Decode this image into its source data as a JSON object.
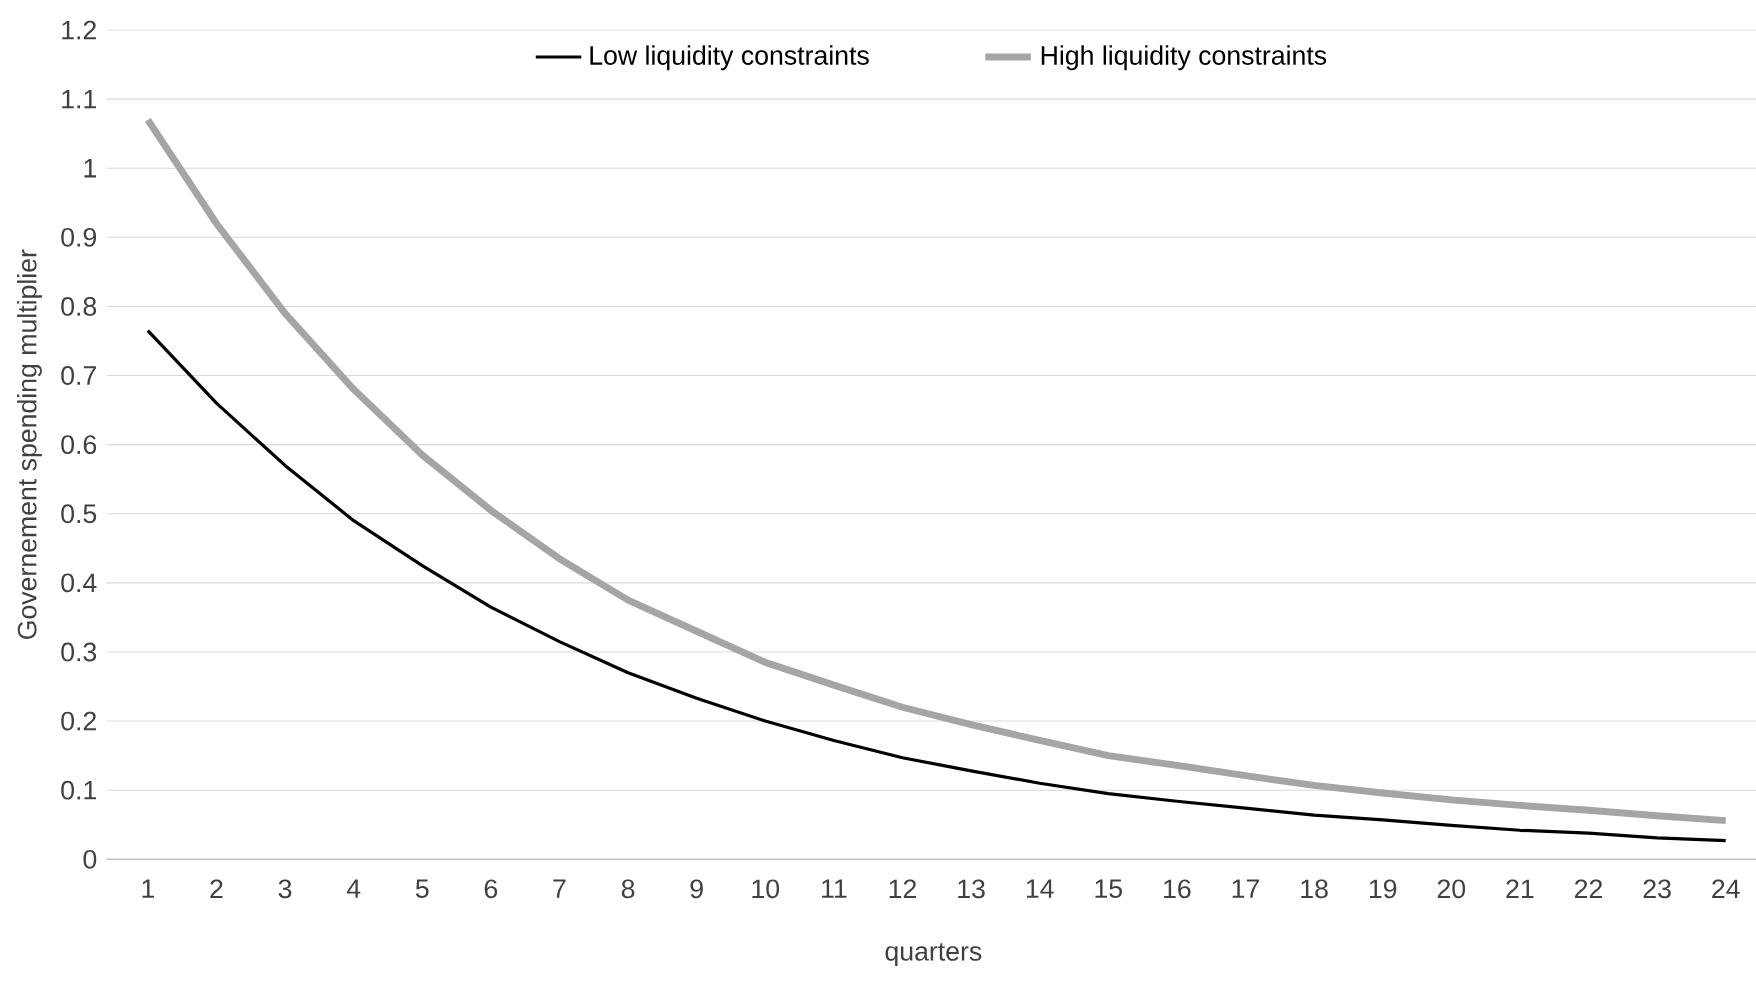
{
  "chart_data": {
    "type": "line",
    "xlabel": "quarters",
    "ylabel": "Governement spending multiplier",
    "categories": [
      "1",
      "2",
      "3",
      "4",
      "5",
      "6",
      "7",
      "8",
      "9",
      "10",
      "11",
      "12",
      "13",
      "14",
      "15",
      "16",
      "17",
      "18",
      "19",
      "20",
      "21",
      "22",
      "23",
      "24"
    ],
    "series": [
      {
        "name": "Low liquidity constraints",
        "color": "#000000",
        "values": [
          0.765,
          0.66,
          0.57,
          0.49,
          0.425,
          0.365,
          0.315,
          0.27,
          0.233,
          0.2,
          0.172,
          0.147,
          0.128,
          0.11,
          0.095,
          0.084,
          0.074,
          0.064,
          0.057,
          0.049,
          0.042,
          0.038,
          0.031,
          0.027
        ]
      },
      {
        "name": "High liquidity constraints",
        "color": "#a5a5a5",
        "values": [
          1.07,
          0.92,
          0.79,
          0.68,
          0.585,
          0.505,
          0.435,
          0.375,
          0.33,
          0.285,
          0.252,
          0.22,
          0.195,
          0.172,
          0.15,
          0.136,
          0.121,
          0.107,
          0.096,
          0.086,
          0.078,
          0.071,
          0.063,
          0.056
        ]
      }
    ],
    "ylim": [
      0,
      1.2
    ],
    "yticks": [
      0,
      0.1,
      0.2,
      0.3,
      0.4,
      0.5,
      0.6,
      0.7,
      0.8,
      0.9,
      1,
      1.1,
      1.2
    ],
    "grid": "y",
    "legend": "top",
    "marker": "none",
    "line_style": "solid"
  }
}
